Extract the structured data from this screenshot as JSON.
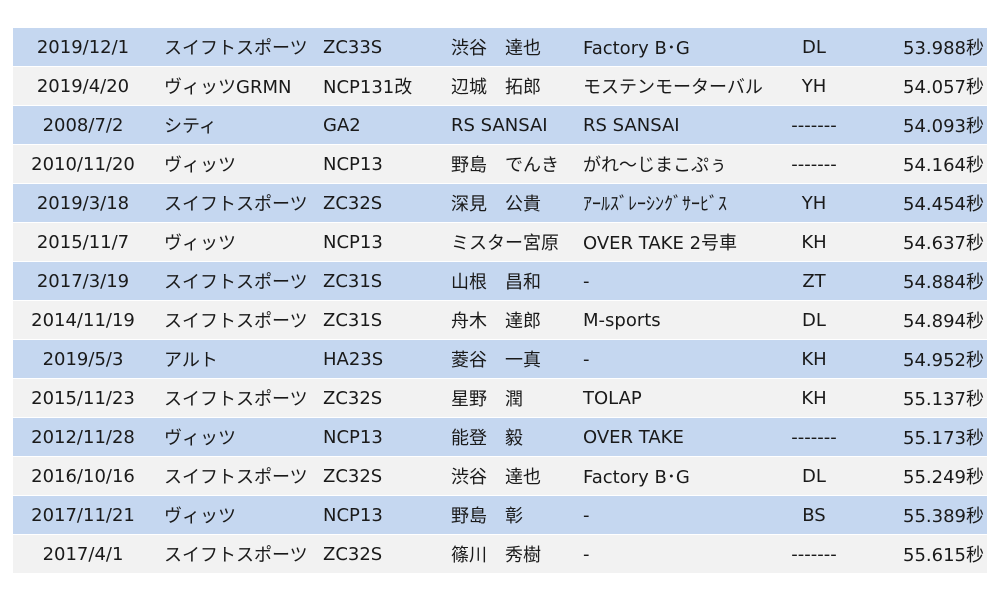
{
  "rows": [
    {
      "date": "2019/12/1",
      "car": "スイフトスポーツ",
      "model": "ZC33S",
      "driver": "渋谷　達也",
      "team": "Factory B･G",
      "tire": "DL",
      "time": "53.988秒"
    },
    {
      "date": "2019/4/20",
      "car": "ヴィッツGRMN",
      "model": "NCP131改",
      "driver": "辺城　拓郎",
      "team": "モステンモーターバル",
      "tire": "YH",
      "time": "54.057秒"
    },
    {
      "date": "2008/7/2",
      "car": "シティ",
      "model": "GA2",
      "driver": "RS SANSAI",
      "team": "RS SANSAI",
      "tire": "-------",
      "time": "54.093秒"
    },
    {
      "date": "2010/11/20",
      "car": "ヴィッツ",
      "model": "NCP13",
      "driver": "野島　でんき",
      "team": "がれ～じまこぷぅ",
      "tire": "-------",
      "time": "54.164秒"
    },
    {
      "date": "2019/3/18",
      "car": "スイフトスポーツ",
      "model": "ZC32S",
      "driver": "深見　公貴",
      "team": "ｱｰﾙｽﾞﾚｰｼﾝｸﾞｻｰﾋﾞｽ",
      "tire": "YH",
      "time": "54.454秒"
    },
    {
      "date": "2015/11/7",
      "car": "ヴィッツ",
      "model": "NCP13",
      "driver": "ミスター宮原",
      "team": "OVER TAKE 2号車",
      "tire": "KH",
      "time": "54.637秒"
    },
    {
      "date": "2017/3/19",
      "car": "スイフトスポーツ",
      "model": "ZC31S",
      "driver": "山根　昌和",
      "team": "-",
      "tire": "ZT",
      "time": "54.884秒"
    },
    {
      "date": "2014/11/19",
      "car": "スイフトスポーツ",
      "model": "ZC31S",
      "driver": "舟木　達郎",
      "team": "M-sports",
      "tire": "DL",
      "time": "54.894秒"
    },
    {
      "date": "2019/5/3",
      "car": "アルト",
      "model": "HA23S",
      "driver": "菱谷　一真",
      "team": "-",
      "tire": "KH",
      "time": "54.952秒"
    },
    {
      "date": "2015/11/23",
      "car": "スイフトスポーツ",
      "model": "ZC32S",
      "driver": "星野　潤",
      "team": "TOLAP",
      "tire": "KH",
      "time": "55.137秒"
    },
    {
      "date": "2012/11/28",
      "car": "ヴィッツ",
      "model": "NCP13",
      "driver": "能登　毅",
      "team": "OVER TAKE",
      "tire": "-------",
      "time": "55.173秒"
    },
    {
      "date": "2016/10/16",
      "car": "スイフトスポーツ",
      "model": "ZC32S",
      "driver": "渋谷　達也",
      "team": "Factory B･G",
      "tire": "DL",
      "time": "55.249秒"
    },
    {
      "date": "2017/11/21",
      "car": "ヴィッツ",
      "model": "NCP13",
      "driver": "野島　彰",
      "team": "-",
      "tire": "BS",
      "time": "55.389秒"
    },
    {
      "date": "2017/4/1",
      "car": "スイフトスポーツ",
      "model": "ZC32S",
      "driver": "篠川　秀樹",
      "team": "-",
      "tire": "-------",
      "time": "55.615秒"
    }
  ],
  "colors": {
    "row_odd": "#c5d7f0",
    "row_even": "#f2f2f2",
    "text": "#1a1a1a"
  }
}
